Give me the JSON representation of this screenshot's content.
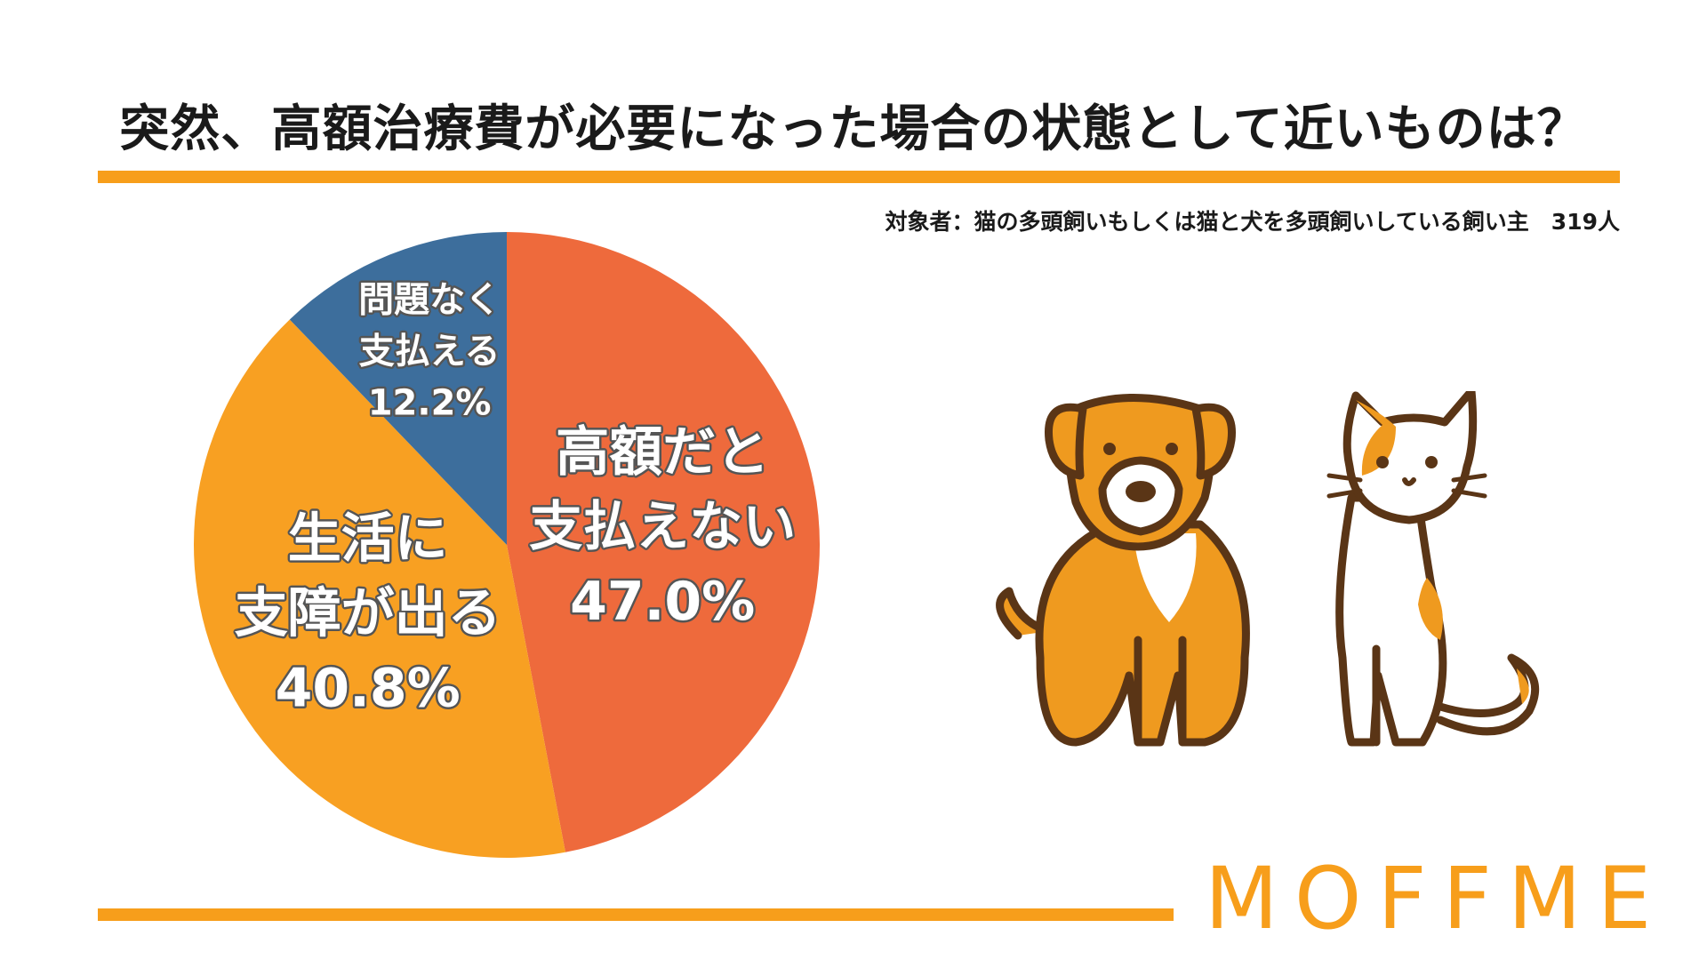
{
  "title": "突然、高額治療費が必要になった場合の状態として近いものは？",
  "subtitle": "対象者：猫の多頭飼いもしくは猫と犬を多頭飼いしている飼い主　319人",
  "brand": "MOFFME",
  "chart_data": {
    "type": "pie",
    "title": "突然、高額治療費が必要になった場合の状態として近いものは？",
    "slices": [
      {
        "label_lines": [
          "高額だと",
          "支払えない"
        ],
        "value": 47.0,
        "value_label": "47.0%",
        "color": "#EE6A3C"
      },
      {
        "label_lines": [
          "生活に",
          "支障が出る"
        ],
        "value": 40.8,
        "value_label": "40.8%",
        "color": "#F8A022"
      },
      {
        "label_lines": [
          "問題なく",
          "支払える"
        ],
        "value": 12.2,
        "value_label": "12.2%",
        "color": "#3D6E9C"
      }
    ]
  },
  "colors": {
    "accent": "#F79E1B",
    "dog": "#EF9A1F",
    "outline": "#5A3516"
  },
  "illustration": {
    "dog_icon": "dog-icon",
    "cat_icon": "cat-icon"
  }
}
